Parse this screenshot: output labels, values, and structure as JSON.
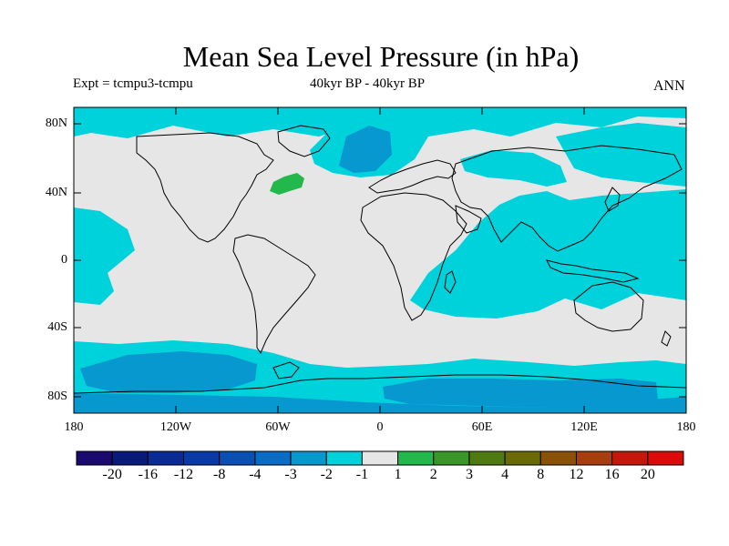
{
  "title": "Mean Sea Level Pressure (in hPa)",
  "subtitle_left": "Expt = tcmpu3-tcmpu",
  "subtitle_center": "40kyr BP - 40kyr BP",
  "subtitle_right": "ANN",
  "lat_ticks": [
    "80N",
    "40N",
    "0",
    "40S",
    "80S"
  ],
  "lon_ticks": [
    "180",
    "120W",
    "60W",
    "0",
    "60E",
    "120E",
    "180"
  ],
  "colorbar": {
    "labels": [
      "-20",
      "-16",
      "-12",
      "-8",
      "-4",
      "-3",
      "-2",
      "-1",
      "1",
      "2",
      "3",
      "4",
      "8",
      "12",
      "16",
      "20"
    ],
    "colors": [
      "#1a0a6e",
      "#0a1a7a",
      "#0a2a96",
      "#0a3aa8",
      "#0a50b4",
      "#0a6cc4",
      "#0898d0",
      "#00d2dc",
      "#e6e6e6",
      "#22b84c",
      "#3a9628",
      "#4f7a12",
      "#6a6a08",
      "#8a5208",
      "#a83e10",
      "#c4180c",
      "#dc0a0a"
    ]
  },
  "map_colors": {
    "background": "#e6e6e6",
    "light_negative": "#00d2dc",
    "moderate_negative": "#0898d0",
    "positive": "#22b84c"
  }
}
